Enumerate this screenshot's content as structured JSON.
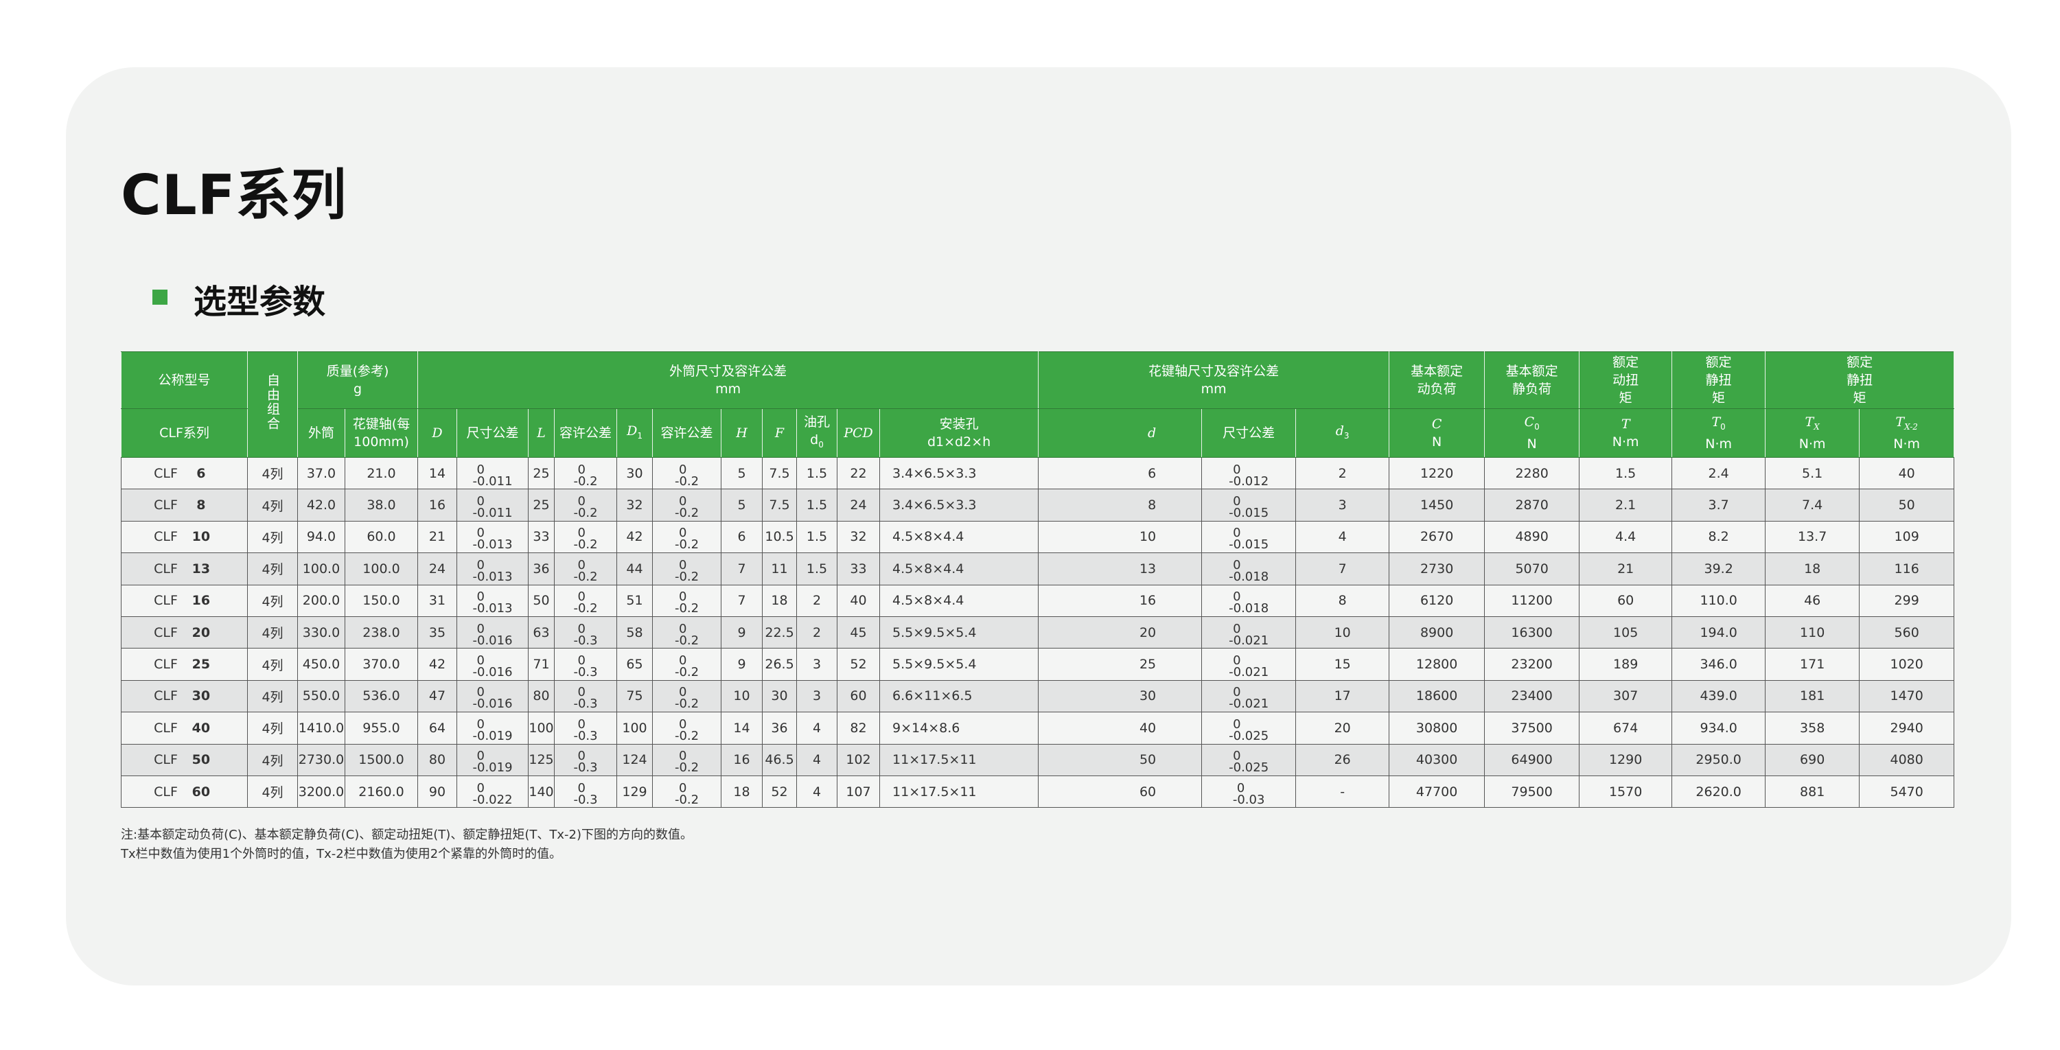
{
  "title": "CLF系列",
  "subtitle": "选型参数",
  "colors": {
    "header_green": "#3da645",
    "accent_square": "#3da645"
  },
  "header": {
    "r1": {
      "model": "公称型号",
      "combo": "自由组合",
      "mass": "质量(参考)",
      "mass_unit": "g",
      "outer": "外筒尺寸及容许公差",
      "outer_unit": "mm",
      "shaft": "花键轴尺寸及容许公差",
      "shaft_unit": "mm",
      "C": "基本额定动负荷",
      "C0": "基本额定静负荷",
      "T": "额定动扭矩",
      "T0": "额定静扭矩",
      "Tx": "额定静扭矩"
    },
    "r2": {
      "series": "CLF系列",
      "mass_outer": "外筒",
      "mass_shaft": "花键轴(每100mm)",
      "D": "D",
      "D_tol": "尺寸公差",
      "L": "L",
      "L_tol": "容许公差",
      "D1": "D",
      "D1_sub": "1",
      "D1_tol": "容许公差",
      "H": "H",
      "F": "F",
      "oil": "油孔",
      "oil_sym": "d",
      "oil_sub": "0",
      "PCD": "PCD",
      "mount": "安装孔",
      "mount_sym": "d1×d2×h",
      "d": "d",
      "d_tol": "尺寸公差",
      "d3": "d",
      "d3_sub": "3",
      "C": "C",
      "C0": "C",
      "C0_sub": "0",
      "T": "T",
      "T0": "T",
      "T0_sub": "0",
      "Tx": "T",
      "Tx_sub": "X",
      "Tx2": "T",
      "Tx2_sub": "X-2",
      "unit_N": "N",
      "unit_Nm": "N·m"
    }
  },
  "rows": [
    {
      "series": "CLF",
      "size": "6",
      "combo": "4列",
      "mass_outer": "37.0",
      "mass_shaft": "21.0",
      "D": "14",
      "D_tol": [
        "0",
        "-0.011"
      ],
      "L": "25",
      "L_tol": [
        "0",
        "-0.2"
      ],
      "D1": "30",
      "D1_tol": [
        "0",
        "-0.2"
      ],
      "H": "5",
      "F": "7.5",
      "oil": "1.5",
      "PCD": "22",
      "mount": "3.4×6.5×3.3",
      "d": "6",
      "d_tol": [
        "0",
        "-0.012"
      ],
      "d3": "2",
      "C": "1220",
      "C0": "2280",
      "T": "1.5",
      "T0": "2.4",
      "Tx": "5.1",
      "Tx2": "40"
    },
    {
      "series": "CLF",
      "size": "8",
      "combo": "4列",
      "mass_outer": "42.0",
      "mass_shaft": "38.0",
      "D": "16",
      "D_tol": [
        "0",
        "-0.011"
      ],
      "L": "25",
      "L_tol": [
        "0",
        "-0.2"
      ],
      "D1": "32",
      "D1_tol": [
        "0",
        "-0.2"
      ],
      "H": "5",
      "F": "7.5",
      "oil": "1.5",
      "PCD": "24",
      "mount": "3.4×6.5×3.3",
      "d": "8",
      "d_tol": [
        "0",
        "-0.015"
      ],
      "d3": "3",
      "C": "1450",
      "C0": "2870",
      "T": "2.1",
      "T0": "3.7",
      "Tx": "7.4",
      "Tx2": "50"
    },
    {
      "series": "CLF",
      "size": "10",
      "combo": "4列",
      "mass_outer": "94.0",
      "mass_shaft": "60.0",
      "D": "21",
      "D_tol": [
        "0",
        "-0.013"
      ],
      "L": "33",
      "L_tol": [
        "0",
        "-0.2"
      ],
      "D1": "42",
      "D1_tol": [
        "0",
        "-0.2"
      ],
      "H": "6",
      "F": "10.5",
      "oil": "1.5",
      "PCD": "32",
      "mount": "4.5×8×4.4",
      "d": "10",
      "d_tol": [
        "0",
        "-0.015"
      ],
      "d3": "4",
      "C": "2670",
      "C0": "4890",
      "T": "4.4",
      "T0": "8.2",
      "Tx": "13.7",
      "Tx2": "109"
    },
    {
      "series": "CLF",
      "size": "13",
      "combo": "4列",
      "mass_outer": "100.0",
      "mass_shaft": "100.0",
      "D": "24",
      "D_tol": [
        "0",
        "-0.013"
      ],
      "L": "36",
      "L_tol": [
        "0",
        "-0.2"
      ],
      "D1": "44",
      "D1_tol": [
        "0",
        "-0.2"
      ],
      "H": "7",
      "F": "11",
      "oil": "1.5",
      "PCD": "33",
      "mount": "4.5×8×4.4",
      "d": "13",
      "d_tol": [
        "0",
        "-0.018"
      ],
      "d3": "7",
      "C": "2730",
      "C0": "5070",
      "T": "21",
      "T0": "39.2",
      "Tx": "18",
      "Tx2": "116"
    },
    {
      "series": "CLF",
      "size": "16",
      "combo": "4列",
      "mass_outer": "200.0",
      "mass_shaft": "150.0",
      "D": "31",
      "D_tol": [
        "0",
        "-0.013"
      ],
      "L": "50",
      "L_tol": [
        "0",
        "-0.2"
      ],
      "D1": "51",
      "D1_tol": [
        "0",
        "-0.2"
      ],
      "H": "7",
      "F": "18",
      "oil": "2",
      "PCD": "40",
      "mount": "4.5×8×4.4",
      "d": "16",
      "d_tol": [
        "0",
        "-0.018"
      ],
      "d3": "8",
      "C": "6120",
      "C0": "11200",
      "T": "60",
      "T0": "110.0",
      "Tx": "46",
      "Tx2": "299"
    },
    {
      "series": "CLF",
      "size": "20",
      "combo": "4列",
      "mass_outer": "330.0",
      "mass_shaft": "238.0",
      "D": "35",
      "D_tol": [
        "0",
        "-0.016"
      ],
      "L": "63",
      "L_tol": [
        "0",
        "-0.3"
      ],
      "D1": "58",
      "D1_tol": [
        "0",
        "-0.2"
      ],
      "H": "9",
      "F": "22.5",
      "oil": "2",
      "PCD": "45",
      "mount": "5.5×9.5×5.4",
      "d": "20",
      "d_tol": [
        "0",
        "-0.021"
      ],
      "d3": "10",
      "C": "8900",
      "C0": "16300",
      "T": "105",
      "T0": "194.0",
      "Tx": "110",
      "Tx2": "560"
    },
    {
      "series": "CLF",
      "size": "25",
      "combo": "4列",
      "mass_outer": "450.0",
      "mass_shaft": "370.0",
      "D": "42",
      "D_tol": [
        "0",
        "-0.016"
      ],
      "L": "71",
      "L_tol": [
        "0",
        "-0.3"
      ],
      "D1": "65",
      "D1_tol": [
        "0",
        "-0.2"
      ],
      "H": "9",
      "F": "26.5",
      "oil": "3",
      "PCD": "52",
      "mount": "5.5×9.5×5.4",
      "d": "25",
      "d_tol": [
        "0",
        "-0.021"
      ],
      "d3": "15",
      "C": "12800",
      "C0": "23200",
      "T": "189",
      "T0": "346.0",
      "Tx": "171",
      "Tx2": "1020"
    },
    {
      "series": "CLF",
      "size": "30",
      "combo": "4列",
      "mass_outer": "550.0",
      "mass_shaft": "536.0",
      "D": "47",
      "D_tol": [
        "0",
        "-0.016"
      ],
      "L": "80",
      "L_tol": [
        "0",
        "-0.3"
      ],
      "D1": "75",
      "D1_tol": [
        "0",
        "-0.2"
      ],
      "H": "10",
      "F": "30",
      "oil": "3",
      "PCD": "60",
      "mount": "6.6×11×6.5",
      "d": "30",
      "d_tol": [
        "0",
        "-0.021"
      ],
      "d3": "17",
      "C": "18600",
      "C0": "23400",
      "T": "307",
      "T0": "439.0",
      "Tx": "181",
      "Tx2": "1470"
    },
    {
      "series": "CLF",
      "size": "40",
      "combo": "4列",
      "mass_outer": "1410.0",
      "mass_shaft": "955.0",
      "D": "64",
      "D_tol": [
        "0",
        "-0.019"
      ],
      "L": "100",
      "L_tol": [
        "0",
        "-0.3"
      ],
      "D1": "100",
      "D1_tol": [
        "0",
        "-0.2"
      ],
      "H": "14",
      "F": "36",
      "oil": "4",
      "PCD": "82",
      "mount": "9×14×8.6",
      "d": "40",
      "d_tol": [
        "0",
        "-0.025"
      ],
      "d3": "20",
      "C": "30800",
      "C0": "37500",
      "T": "674",
      "T0": "934.0",
      "Tx": "358",
      "Tx2": "2940"
    },
    {
      "series": "CLF",
      "size": "50",
      "combo": "4列",
      "mass_outer": "2730.0",
      "mass_shaft": "1500.0",
      "D": "80",
      "D_tol": [
        "0",
        "-0.019"
      ],
      "L": "125",
      "L_tol": [
        "0",
        "-0.3"
      ],
      "D1": "124",
      "D1_tol": [
        "0",
        "-0.2"
      ],
      "H": "16",
      "F": "46.5",
      "oil": "4",
      "PCD": "102",
      "mount": "11×17.5×11",
      "d": "50",
      "d_tol": [
        "0",
        "-0.025"
      ],
      "d3": "26",
      "C": "40300",
      "C0": "64900",
      "T": "1290",
      "T0": "2950.0",
      "Tx": "690",
      "Tx2": "4080"
    },
    {
      "series": "CLF",
      "size": "60",
      "combo": "4列",
      "mass_outer": "3200.0",
      "mass_shaft": "2160.0",
      "D": "90",
      "D_tol": [
        "0",
        "-0.022"
      ],
      "L": "140",
      "L_tol": [
        "0",
        "-0.3"
      ],
      "D1": "129",
      "D1_tol": [
        "0",
        "-0.2"
      ],
      "H": "18",
      "F": "52",
      "oil": "4",
      "PCD": "107",
      "mount": "11×17.5×11",
      "d": "60",
      "d_tol": [
        "0",
        "-0.03"
      ],
      "d3": "-",
      "C": "47700",
      "C0": "79500",
      "T": "1570",
      "T0": "2620.0",
      "Tx": "881",
      "Tx2": "5470"
    }
  ],
  "notes": [
    "注:基本额定动负荷(C)、基本额定静负荷(C)、额定动扭矩(T)、额定静扭矩(T、Tx-2)下图的方向的数值。",
    "Tx栏中数值为使用1个外筒时的值，Tx-2栏中数值为使用2个紧靠的外筒时的值。"
  ]
}
